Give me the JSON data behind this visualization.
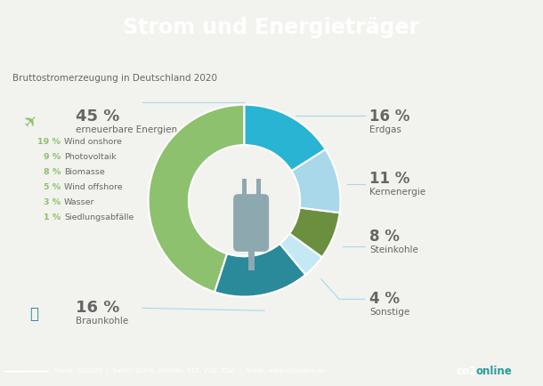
{
  "title": "Strom und Energieträger",
  "subtitle": "Bruttostromerzeugung in Deutschland 2020",
  "title_bg": "#2a9d9a",
  "footer_bg": "#2a9d9a",
  "footer_text": "Stand: 10/2020  |  Daten: BDEW, Destatis, EEX, VGB, ZSW  |  Grafik: www.co2online.de",
  "bg_color": "#f2f2ee",
  "donut_colors": [
    "#8dc16e",
    "#2a8a9a",
    "#29b4d4",
    "#a8d8ea",
    "#6b8f3e",
    "#c5e8f5"
  ],
  "donut_values": [
    45,
    16,
    16,
    11,
    8,
    4
  ],
  "donut_labels": [
    "erneuerbare Energien",
    "Braunkohle",
    "Erdgas",
    "Kernenergie",
    "Steinkohle",
    "Sonstige"
  ],
  "plug_color": "#8ea8b0",
  "green_color": "#8dc16e",
  "teal_color": "#2a8a9a",
  "left_labels": [
    {
      "pct": "45 %",
      "label": "erneuerbare Energien",
      "major": true,
      "pct_color": "#777777"
    },
    {
      "pct": "19 %",
      "label": "Wind onshore",
      "major": false,
      "pct_color": "#8dc16e"
    },
    {
      "pct": "9 %",
      "label": "Photovoltaik",
      "major": false,
      "pct_color": "#8dc16e"
    },
    {
      "pct": "8 %",
      "label": "Biomasse",
      "major": false,
      "pct_color": "#8dc16e"
    },
    {
      "pct": "5 %",
      "label": "Wind offshore",
      "major": false,
      "pct_color": "#8dc16e"
    },
    {
      "pct": "3 %",
      "label": "Wasser",
      "major": false,
      "pct_color": "#8dc16e"
    },
    {
      "pct": "1 %",
      "label": "Siedlungsabfälle",
      "major": false,
      "pct_color": "#8dc16e"
    },
    {
      "pct": "16 %",
      "label": "Braunkohle",
      "major": true,
      "pct_color": "#777777"
    }
  ],
  "right_labels": [
    {
      "pct": "16 %",
      "label": "Erdgas"
    },
    {
      "pct": "11 %",
      "label": "Kernenergie"
    },
    {
      "pct": "8 %",
      "label": "Steinkohle"
    },
    {
      "pct": "4 %",
      "label": "Sonstige"
    }
  ],
  "line_color": "#a8d8ea",
  "text_color": "#666666"
}
